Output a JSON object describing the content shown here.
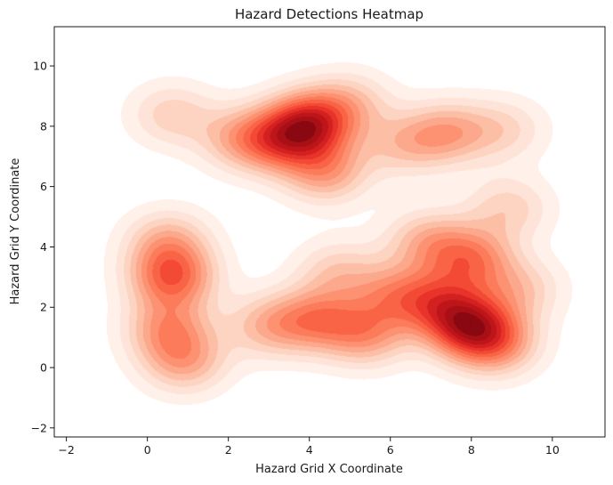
{
  "chart_data": {
    "type": "heatmap",
    "subtype": "kernel-density",
    "title": "Hazard Detections Heatmap",
    "xlabel": "Hazard Grid X Coordinate",
    "ylabel": "Hazard Grid Y Coordinate",
    "xlim": [
      -2.3,
      11.3
    ],
    "ylim": [
      -2.3,
      11.3
    ],
    "xticks": [
      -2,
      0,
      2,
      4,
      6,
      8,
      10
    ],
    "yticks": [
      -2,
      0,
      2,
      4,
      6,
      8,
      10
    ],
    "colormap": "Reds",
    "colors": [
      "#fff5f0",
      "#fee0d2",
      "#fcbba1",
      "#fc9272",
      "#fb6a4a",
      "#ef3b2c",
      "#cb181d",
      "#a50f15",
      "#67000d"
    ],
    "grid": false,
    "hotspots": [
      {
        "x": 4.0,
        "y": 8.1,
        "intensity": 1.0
      },
      {
        "x": 3.3,
        "y": 7.5,
        "intensity": 0.6
      },
      {
        "x": 4.4,
        "y": 6.5,
        "intensity": 0.55
      },
      {
        "x": 2.3,
        "y": 7.6,
        "intensity": 0.45
      },
      {
        "x": 0.6,
        "y": 8.4,
        "intensity": 0.35
      },
      {
        "x": 5.0,
        "y": 8.8,
        "intensity": 0.35
      },
      {
        "x": 7.4,
        "y": 7.8,
        "intensity": 0.5
      },
      {
        "x": 8.8,
        "y": 7.9,
        "intensity": 0.3
      },
      {
        "x": 6.3,
        "y": 7.4,
        "intensity": 0.35
      },
      {
        "x": 0.6,
        "y": 3.0,
        "intensity": 0.8
      },
      {
        "x": 0.5,
        "y": 1.3,
        "intensity": 0.55
      },
      {
        "x": 0.9,
        "y": 0.2,
        "intensity": 0.5
      },
      {
        "x": 0.5,
        "y": 4.2,
        "intensity": 0.45
      },
      {
        "x": 7.9,
        "y": 1.4,
        "intensity": 1.0
      },
      {
        "x": 8.6,
        "y": 0.8,
        "intensity": 0.6
      },
      {
        "x": 7.2,
        "y": 2.2,
        "intensity": 0.55
      },
      {
        "x": 8.0,
        "y": 3.6,
        "intensity": 0.65
      },
      {
        "x": 6.9,
        "y": 4.2,
        "intensity": 0.45
      },
      {
        "x": 4.2,
        "y": 1.6,
        "intensity": 0.6
      },
      {
        "x": 3.0,
        "y": 1.4,
        "intensity": 0.45
      },
      {
        "x": 5.4,
        "y": 1.1,
        "intensity": 0.55
      },
      {
        "x": 6.1,
        "y": 2.4,
        "intensity": 0.5
      },
      {
        "x": 4.7,
        "y": 3.2,
        "intensity": 0.35
      },
      {
        "x": 8.9,
        "y": 5.3,
        "intensity": 0.35
      },
      {
        "x": 9.2,
        "y": 2.6,
        "intensity": 0.35
      }
    ]
  }
}
